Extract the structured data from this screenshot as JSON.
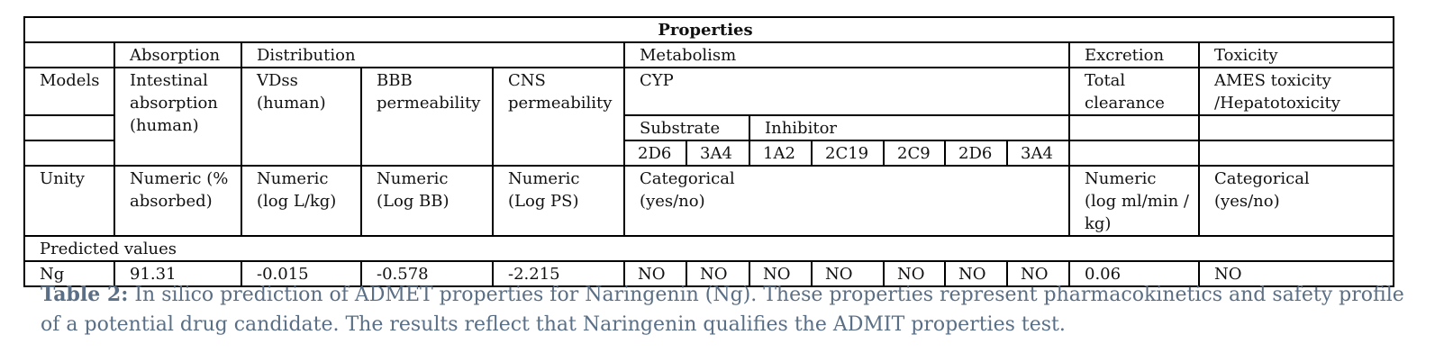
{
  "table": {
    "title": "Properties",
    "categories": {
      "absorption": "Absorption",
      "distribution": "Distribution",
      "metabolism": "Metabolism",
      "excretion": "Excretion",
      "toxicity": "Toxicity"
    },
    "row_labels": {
      "models": "Models",
      "unity": "Unity",
      "predicted": "Predicted values"
    },
    "params": {
      "intestinal": "Intestinal absorption (human)",
      "vdss": "VDss (human)",
      "bbb": "BBB permeability",
      "cns": "CNS permeability",
      "cyp": "CYP",
      "clearance": "Total clearance",
      "ames": "AMES toxicity /Hepatotoxicity"
    },
    "cyp_groups": {
      "substrate": "Substrate",
      "inhibitor": "Inhibitor"
    },
    "cyp_isoforms": [
      "2D6",
      "3A4",
      "1A2",
      "2C19",
      "2C9",
      "2D6",
      "3A4"
    ],
    "units": {
      "intestinal": "Numeric (% absorbed)",
      "vdss": "Numeric (log L/kg)",
      "bbb": "Numeric (Log BB)",
      "cns": "Numeric (Log PS)",
      "metabolism": "Categorical (yes/no)",
      "clearance": "Numeric (log ml/min / kg)",
      "toxicity": "Categorical (yes/no)"
    },
    "prediction": {
      "name": "Ng",
      "intestinal": "91.31",
      "vdss": "-0.015",
      "bbb": "-0.578",
      "cns": "-2.215",
      "cyp": [
        "NO",
        "NO",
        "NO",
        "NO",
        "NO",
        "NO",
        "NO"
      ],
      "clearance": "0.06",
      "toxicity": "NO"
    }
  },
  "caption": {
    "label": "Table 2:",
    "text": " In silico prediction of ADMET properties for Naringenin (Ng). These properties represent pharmacokinetics and safety profile of a potential drug candidate. The results reflect that Naringenin qualifies the ADMIT properties test."
  }
}
